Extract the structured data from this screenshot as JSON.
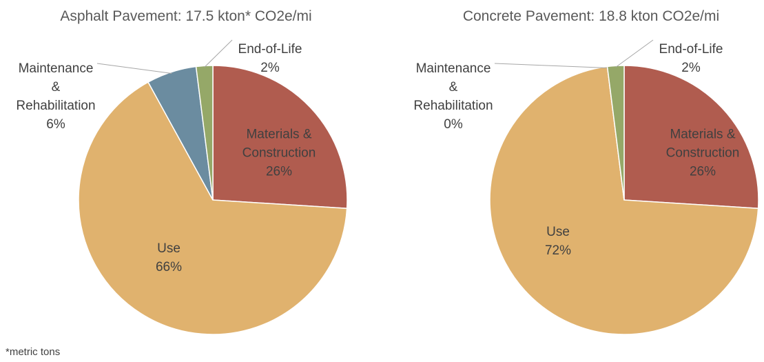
{
  "chart_data": [
    {
      "type": "pie",
      "title": "Asphalt Pavement: 17.5 kton* CO2e/mi",
      "categories": [
        "Materials & Construction",
        "Use",
        "Maintenance & Rehabilitation",
        "End-of-Life"
      ],
      "values": [
        26,
        66,
        6,
        2
      ],
      "value_labels": [
        "26%",
        "66%",
        "6%",
        "2%"
      ],
      "colors": [
        "#b05c4f",
        "#e0b26e",
        "#6b8ca0",
        "#95a868"
      ]
    },
    {
      "type": "pie",
      "title": "Concrete Pavement: 18.8 kton CO2e/mi",
      "categories": [
        "Materials & Construction",
        "Use",
        "Maintenance & Rehabilitation",
        "End-of-Life"
      ],
      "values": [
        26,
        72,
        0,
        2
      ],
      "value_labels": [
        "26%",
        "72%",
        "0%",
        "2%"
      ],
      "colors": [
        "#b05c4f",
        "#e0b26e",
        "#6b8ca0",
        "#95a868"
      ]
    }
  ],
  "footnote": "*metric tons"
}
